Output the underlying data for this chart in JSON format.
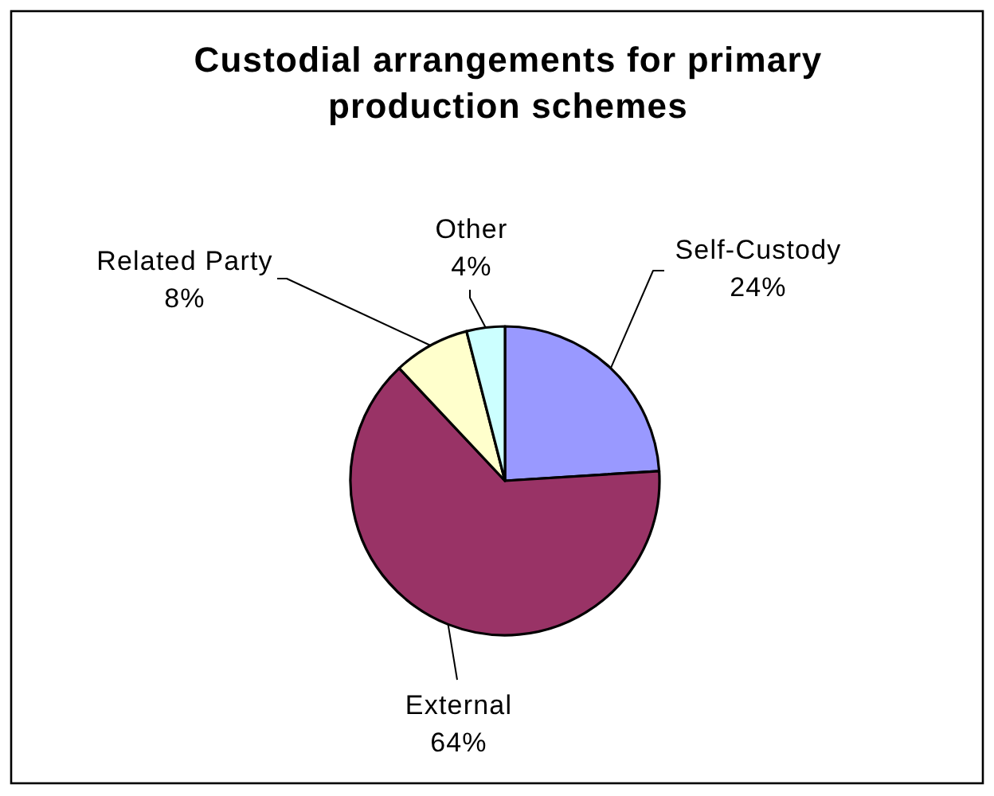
{
  "chart_data": {
    "type": "pie",
    "title": "Custodial arrangements for primary production schemes",
    "categories": [
      "Self-Custody",
      "External",
      "Related Party",
      "Other"
    ],
    "values": [
      24,
      64,
      8,
      4
    ],
    "value_labels": [
      "24%",
      "64%",
      "8%",
      "4%"
    ],
    "colors": [
      "#9999ff",
      "#993366",
      "#ffffcc",
      "#ccffff"
    ]
  }
}
